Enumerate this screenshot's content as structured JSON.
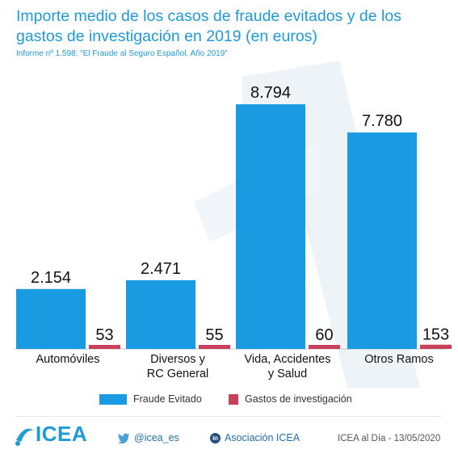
{
  "header": {
    "title": "Importe medio de los casos de fraude evitados y de los gastos de investigación en 2019 (en euros)",
    "subtitle": "Informe nº 1.598: “El Fraude al Seguro Español. Año 2019”"
  },
  "chart_data": {
    "type": "bar",
    "categories": [
      "Automóviles",
      "Diversos y\nRC General",
      "Vida, Accidentes\ny Salud",
      "Otros Ramos"
    ],
    "series": [
      {
        "name": "Fraude Evitado",
        "values": [
          2154,
          2471,
          8794,
          7780
        ],
        "labels": [
          "2.154",
          "2.471",
          "8.794",
          "7.780"
        ],
        "color": "#1a9ae0"
      },
      {
        "name": "Gastos de investigación",
        "values": [
          53,
          55,
          60,
          153
        ],
        "labels": [
          "53",
          "55",
          "60",
          "153"
        ],
        "color": "#c8405a"
      }
    ],
    "ylim": [
      0,
      9000
    ],
    "grid": false,
    "legend": "bottom"
  },
  "footer": {
    "logo_text": "ICEA",
    "twitter": "@icea_es",
    "linkedin": "Asociación ICEA",
    "date_text": "ICEA al Día - 13/05/2020",
    "accent": "#1e9ad6"
  }
}
